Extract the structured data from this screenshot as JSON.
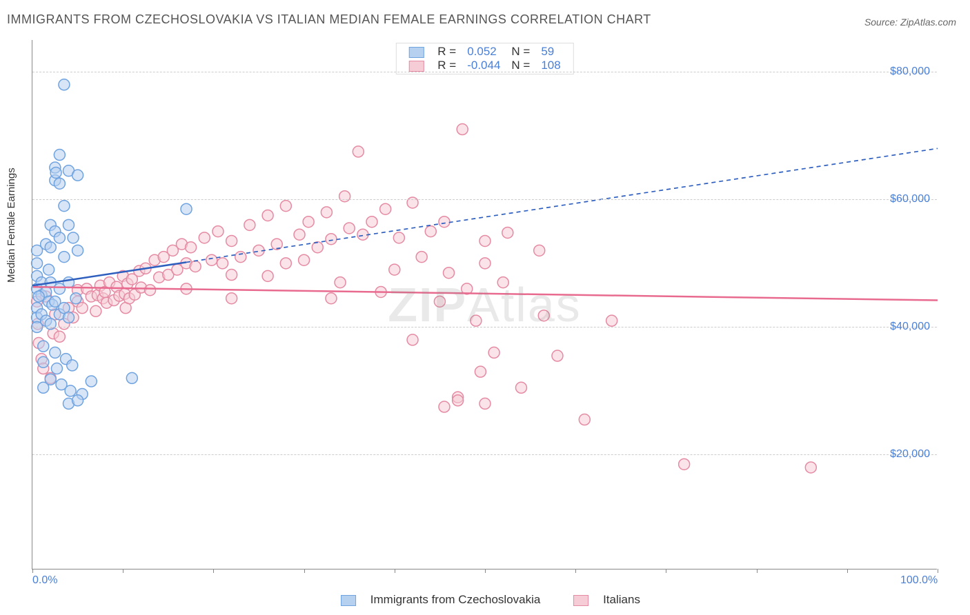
{
  "title": "IMMIGRANTS FROM CZECHOSLOVAKIA VS ITALIAN MEDIAN FEMALE EARNINGS CORRELATION CHART",
  "source": "Source: ZipAtlas.com",
  "ylabel": "Median Female Earnings",
  "watermark_bold": "ZIP",
  "watermark_light": "Atlas",
  "chart": {
    "type": "scatter-with-regression",
    "background_color": "#ffffff",
    "grid_color": "#cccccc",
    "axis_color": "#888888",
    "text_color": "#333333",
    "tick_label_color": "#4a7fd6",
    "title_fontsize": 18,
    "label_fontsize": 15,
    "tick_fontsize": 16,
    "xlim": [
      0,
      100
    ],
    "ylim": [
      2000,
      85000
    ],
    "xticks": [
      0,
      100
    ],
    "xtick_labels": [
      "0.0%",
      "100.0%"
    ],
    "xtick_marks_at": [
      0,
      10,
      20,
      30,
      40,
      50,
      60,
      70,
      80,
      90,
      100
    ],
    "yticks": [
      20000,
      40000,
      60000,
      80000
    ],
    "ytick_labels": [
      "$20,000",
      "$40,000",
      "$60,000",
      "$80,000"
    ],
    "series": [
      {
        "name": "Immigrants from Czechoslovakia",
        "fill_color": "#b6d0f0",
        "stroke_color": "#6fa3e0",
        "fill_opacity": 0.55,
        "marker_radius": 8,
        "r_value": "0.052",
        "n_value": "59",
        "regression": {
          "y_at_x0": 46500,
          "y_at_x100": 68000,
          "solid_until_x": 17,
          "line_color": "#2e5fbf",
          "line_width": 2.5,
          "dash": "6,5"
        },
        "points": [
          [
            0.5,
            46000
          ],
          [
            0.5,
            48000
          ],
          [
            0.5,
            43000
          ],
          [
            0.5,
            41500
          ],
          [
            0.5,
            50000
          ],
          [
            0.5,
            52000
          ],
          [
            0.5,
            40000
          ],
          [
            1.0,
            47000
          ],
          [
            1.0,
            45000
          ],
          [
            1.0,
            42000
          ],
          [
            1.2,
            37000
          ],
          [
            1.2,
            34500
          ],
          [
            1.5,
            53000
          ],
          [
            1.5,
            45500
          ],
          [
            1.5,
            41000
          ],
          [
            1.8,
            49000
          ],
          [
            1.8,
            44000
          ],
          [
            2.0,
            56000
          ],
          [
            2.0,
            52500
          ],
          [
            2.0,
            47000
          ],
          [
            2.0,
            40500
          ],
          [
            2.2,
            43500
          ],
          [
            2.5,
            65000
          ],
          [
            2.5,
            63000
          ],
          [
            2.6,
            64200
          ],
          [
            2.5,
            55000
          ],
          [
            2.5,
            44000
          ],
          [
            2.5,
            36000
          ],
          [
            2.7,
            33500
          ],
          [
            3.0,
            67000
          ],
          [
            3.0,
            62500
          ],
          [
            3.0,
            54000
          ],
          [
            3.0,
            46000
          ],
          [
            3.0,
            42000
          ],
          [
            3.2,
            31000
          ],
          [
            3.5,
            78000
          ],
          [
            3.5,
            59000
          ],
          [
            3.5,
            51000
          ],
          [
            3.5,
            43000
          ],
          [
            3.7,
            35000
          ],
          [
            4.0,
            64500
          ],
          [
            4.0,
            56000
          ],
          [
            4.0,
            47000
          ],
          [
            4.0,
            41500
          ],
          [
            4.4,
            34000
          ],
          [
            4.2,
            30000
          ],
          [
            4.5,
            54000
          ],
          [
            4.8,
            44500
          ],
          [
            5.0,
            63800
          ],
          [
            5.0,
            52000
          ],
          [
            5.5,
            29500
          ],
          [
            6.5,
            31500
          ],
          [
            4.0,
            28000
          ],
          [
            5.0,
            28500
          ],
          [
            11.0,
            32000
          ],
          [
            17.0,
            58500
          ],
          [
            1.2,
            30500
          ],
          [
            2.0,
            31800
          ],
          [
            0.7,
            44800
          ]
        ]
      },
      {
        "name": "Italians",
        "fill_color": "#f6cdd7",
        "stroke_color": "#e58aa3",
        "fill_opacity": 0.55,
        "marker_radius": 8,
        "r_value": "-0.044",
        "n_value": "108",
        "regression": {
          "y_at_x0": 46300,
          "y_at_x100": 44200,
          "solid_until_x": 100,
          "line_color": "#e86b8f",
          "line_width": 2.5,
          "dash": "none"
        },
        "points": [
          [
            0.5,
            44000
          ],
          [
            0.6,
            40500
          ],
          [
            0.7,
            37500
          ],
          [
            1.0,
            35000
          ],
          [
            1.2,
            33500
          ],
          [
            1.5,
            44800
          ],
          [
            2.0,
            32000
          ],
          [
            2.3,
            39000
          ],
          [
            2.5,
            42000
          ],
          [
            3.0,
            38500
          ],
          [
            3.5,
            40500
          ],
          [
            4.0,
            43000
          ],
          [
            4.5,
            41500
          ],
          [
            5.0,
            44000
          ],
          [
            5.0,
            45800
          ],
          [
            5.5,
            43000
          ],
          [
            6.0,
            46000
          ],
          [
            6.5,
            44800
          ],
          [
            7.0,
            42500
          ],
          [
            7.2,
            45000
          ],
          [
            7.5,
            46500
          ],
          [
            7.8,
            44500
          ],
          [
            8.0,
            45500
          ],
          [
            8.2,
            43800
          ],
          [
            8.5,
            47000
          ],
          [
            9.0,
            44200
          ],
          [
            9.3,
            46300
          ],
          [
            9.6,
            44900
          ],
          [
            10.0,
            48000
          ],
          [
            10.2,
            45200
          ],
          [
            10.3,
            43000
          ],
          [
            10.5,
            46800
          ],
          [
            10.7,
            44500
          ],
          [
            11.0,
            47500
          ],
          [
            11.3,
            45100
          ],
          [
            11.8,
            48800
          ],
          [
            12.0,
            46200
          ],
          [
            12.5,
            49200
          ],
          [
            13.0,
            45800
          ],
          [
            13.5,
            50500
          ],
          [
            14.0,
            47800
          ],
          [
            14.5,
            51000
          ],
          [
            15.0,
            48200
          ],
          [
            15.5,
            52000
          ],
          [
            16.0,
            49000
          ],
          [
            16.5,
            53000
          ],
          [
            17.0,
            50000
          ],
          [
            17.5,
            52500
          ],
          [
            18.0,
            49500
          ],
          [
            19.0,
            54000
          ],
          [
            19.8,
            50500
          ],
          [
            20.5,
            55000
          ],
          [
            21.0,
            50000
          ],
          [
            22.0,
            53500
          ],
          [
            23.0,
            51000
          ],
          [
            24.0,
            56000
          ],
          [
            25.0,
            52000
          ],
          [
            26.0,
            57500
          ],
          [
            27.0,
            53000
          ],
          [
            28.0,
            59000
          ],
          [
            29.5,
            54500
          ],
          [
            30.5,
            56500
          ],
          [
            31.5,
            52500
          ],
          [
            32.5,
            58000
          ],
          [
            33.0,
            53800
          ],
          [
            34.5,
            60500
          ],
          [
            35.0,
            55500
          ],
          [
            36.0,
            67500
          ],
          [
            37.5,
            56500
          ],
          [
            39.0,
            58500
          ],
          [
            40.5,
            54000
          ],
          [
            42.0,
            59500
          ],
          [
            44.0,
            55000
          ],
          [
            45.5,
            56500
          ],
          [
            47.5,
            71000
          ],
          [
            28.0,
            50000
          ],
          [
            22.0,
            48200
          ],
          [
            30.0,
            50500
          ],
          [
            26.0,
            48000
          ],
          [
            34.0,
            47000
          ],
          [
            36.5,
            54500
          ],
          [
            40.0,
            49000
          ],
          [
            43.0,
            51000
          ],
          [
            42.0,
            38000
          ],
          [
            45.0,
            44000
          ],
          [
            45.5,
            27500
          ],
          [
            46.0,
            48500
          ],
          [
            47.0,
            29000
          ],
          [
            48.0,
            46000
          ],
          [
            49.0,
            41000
          ],
          [
            49.5,
            33000
          ],
          [
            50.0,
            50000
          ],
          [
            51.0,
            36000
          ],
          [
            52.0,
            47000
          ],
          [
            54.0,
            30500
          ],
          [
            56.0,
            52000
          ],
          [
            56.5,
            41800
          ],
          [
            58.0,
            35500
          ],
          [
            61.0,
            25500
          ],
          [
            64.0,
            41000
          ],
          [
            50.0,
            53500
          ],
          [
            52.5,
            54800
          ],
          [
            72.0,
            18500
          ],
          [
            86.0,
            18000
          ],
          [
            47.0,
            28500
          ],
          [
            50.0,
            28000
          ],
          [
            22.0,
            44500
          ],
          [
            17.0,
            46000
          ],
          [
            33.0,
            44500
          ],
          [
            38.5,
            45500
          ]
        ]
      }
    ]
  },
  "legend_bottom": {
    "items": [
      {
        "swatch_fill": "#b6d0f0",
        "swatch_stroke": "#6fa3e0",
        "label": "Immigrants from Czechoslovakia"
      },
      {
        "swatch_fill": "#f6cdd7",
        "swatch_stroke": "#e58aa3",
        "label": "Italians"
      }
    ]
  }
}
